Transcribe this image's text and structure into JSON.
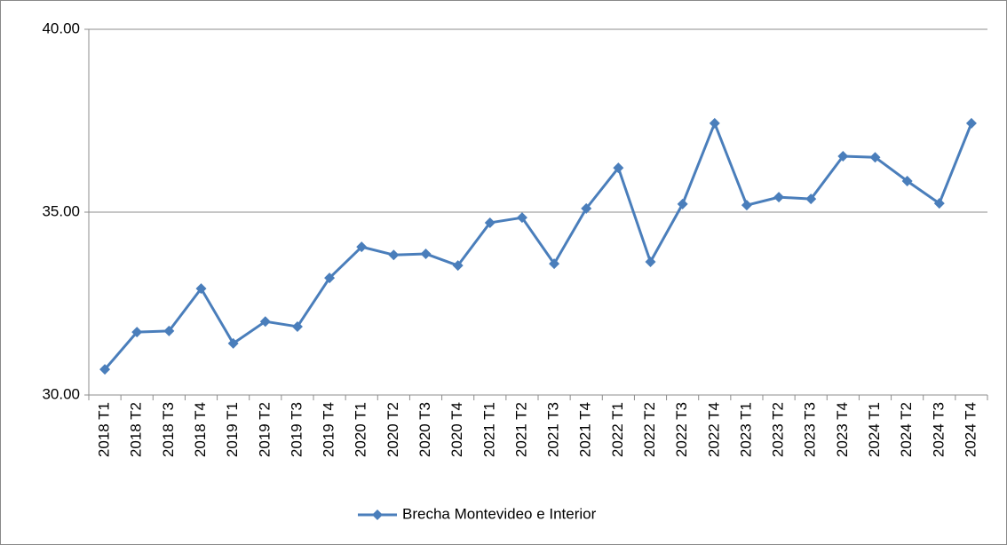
{
  "chart_data": {
    "type": "line",
    "categories": [
      "2018 T1",
      "2018 T2",
      "2018 T3",
      "2018 T4",
      "2019 T1",
      "2019 T2",
      "2019 T3",
      "2019 T4",
      "2020 T1",
      "2020 T2",
      "2020 T3",
      "2020 T4",
      "2021 T1",
      "2021 T2",
      "2021 T3",
      "2021 T4",
      "2022 T1",
      "2022 T2",
      "2022 T3",
      "2022 T4",
      "2023 T1",
      "2023 T2",
      "2023 T3",
      "2023 T4",
      "2024 T1",
      "2024 T2",
      "2024 T3",
      "2024 T4"
    ],
    "series": [
      {
        "name": "Brecha Montevideo e Interior",
        "color": "#4a7ebb",
        "values": [
          30.7,
          31.72,
          31.75,
          32.91,
          31.41,
          32.01,
          31.87,
          33.2,
          34.05,
          33.83,
          33.86,
          33.54,
          34.71,
          34.85,
          33.59,
          35.1,
          36.21,
          33.64,
          35.22,
          37.43,
          35.19,
          35.41,
          35.36,
          36.53,
          36.5,
          35.85,
          35.24,
          37.43
        ]
      }
    ],
    "ylim": [
      30,
      40
    ],
    "yticks": [
      {
        "value": 30,
        "label": "30.00"
      },
      {
        "value": 35,
        "label": "35.00"
      },
      {
        "value": 40,
        "label": "40.00"
      }
    ],
    "grid": true,
    "legend": "bottom"
  }
}
